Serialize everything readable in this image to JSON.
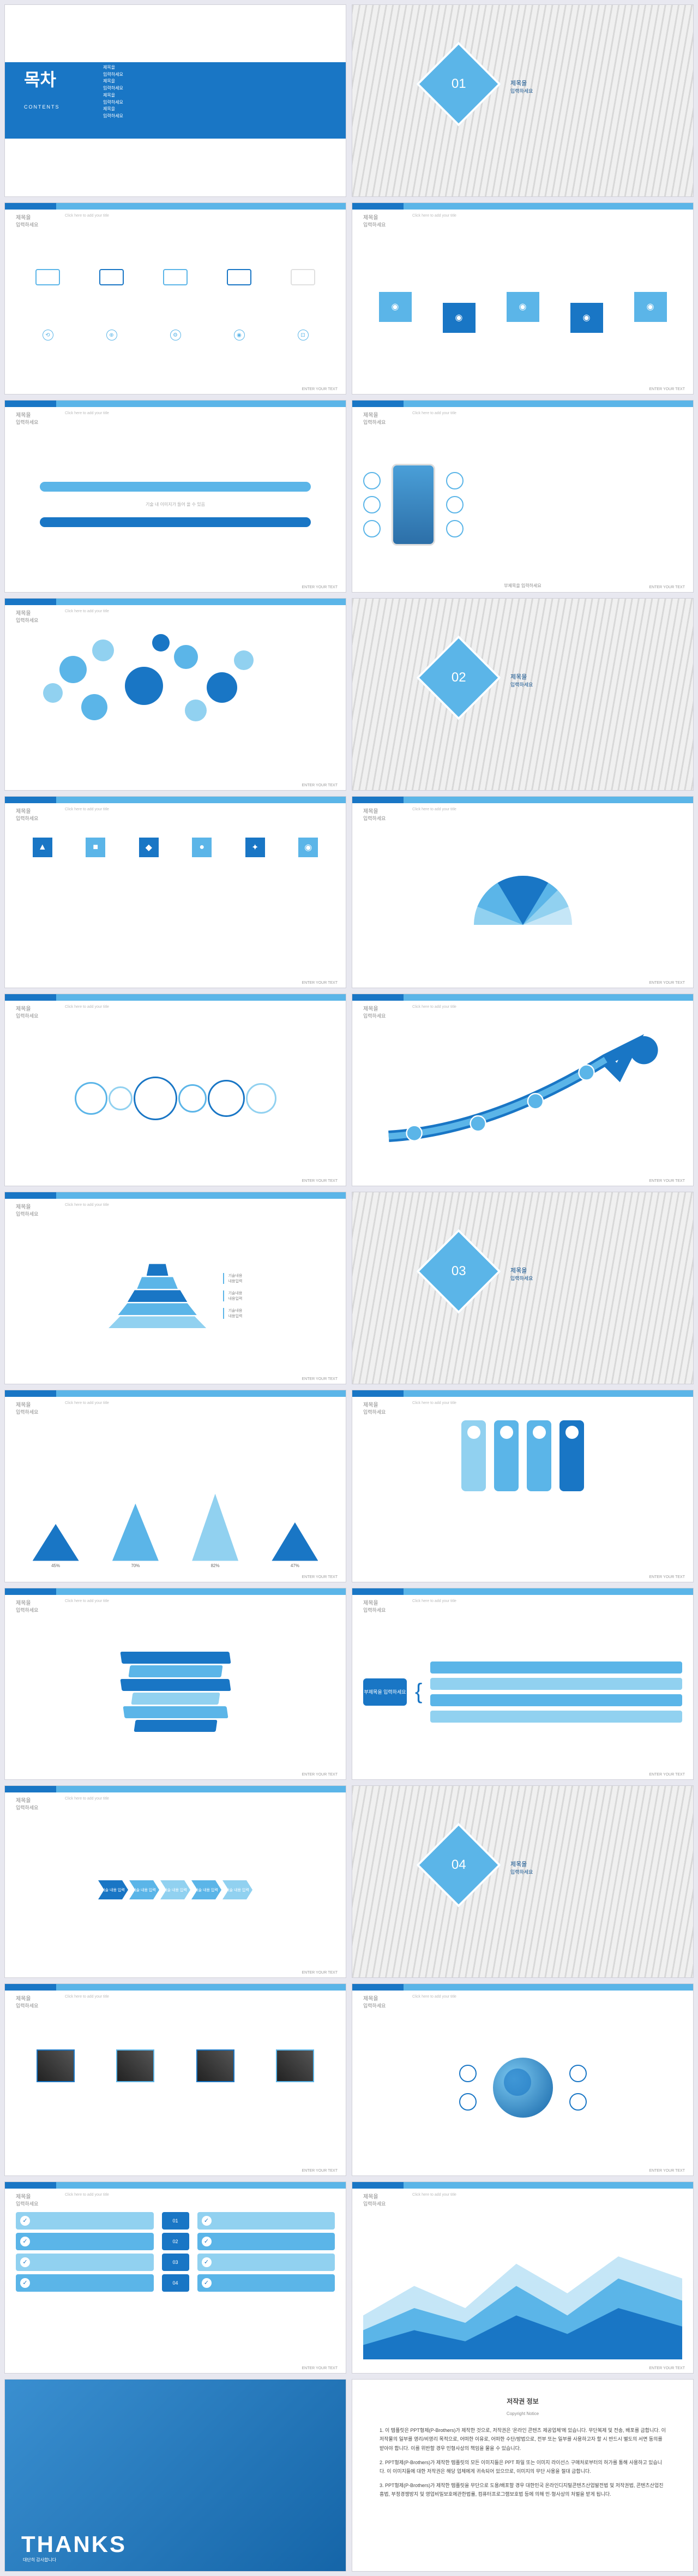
{
  "colors": {
    "primary": "#1976c5",
    "light": "#5bb5e8",
    "lighter": "#91d1f0",
    "pale": "#c5e6f7",
    "dark": "#0d4f8c",
    "grey": "#e0e0e0"
  },
  "contents": {
    "title": "목차",
    "subtitle": "CONTENTS",
    "items": [
      "제목을",
      "입력하세요",
      "제목을",
      "입력하세요",
      "제목을",
      "입력하세요",
      "제목을",
      "입력하세요"
    ]
  },
  "sections": [
    {
      "num": "01",
      "title": "제목을",
      "sub": "입력하세요"
    },
    {
      "num": "02",
      "title": "제목을",
      "sub": "입력하세요"
    },
    {
      "num": "03",
      "title": "제목을",
      "sub": "입력하세요"
    },
    {
      "num": "04",
      "title": "제목을",
      "sub": "입력하세요"
    }
  ],
  "slide_header": {
    "title": "제목을",
    "subtitle": "입력하세요",
    "caption": "Click here to add your title"
  },
  "footer": "ENTER YOUR TEXT",
  "mountains": {
    "values": [
      45,
      70,
      82,
      47
    ],
    "labels": [
      "45%",
      "70%",
      "82%",
      "47%"
    ]
  },
  "bracket": {
    "label": "부제목을 입력하세요"
  },
  "chevron_labels": [
    "기술 내용 입력",
    "기술 내용 입력",
    "기술 내용 입력",
    "기술 내용 입력",
    "기술 내용 입력"
  ],
  "thanks": {
    "title": "THANKS",
    "sub": "대단히 감사합니다"
  },
  "copyright": {
    "title": "저작권 정보",
    "sub": "Copyright Notice",
    "paras": [
      "1. 이 템플릿은 PPT형제(P-Brothers)가 제작한 것으로, 저작권은 '온라인 콘텐츠 제공업체'에 있습니다. 무단복제 및 전송, 배포를 금합니다. 이 저작물의 일부를 영리/비영리 목적으로, 어떠한 이유로, 어떠한 수단/방법으로, 전부 또는 일부를 사용하고자 할 시 반드시 별도의 서면 동의를 받아야 합니다. 이를 위반할 경우 민형사상의 책임을 물을 수 있습니다.",
      "2. PPT형제(P-Brothers)가 제작한 템플릿의 모든 이미지들은 PPT 파일 또는 이미지 라이선스 구매처로부터의 허가를 통해 사용하고 있습니다. 이 이미지들에 대한 저작권은 해당 업체에게 귀속되어 있으므로, 이미지의 무단 사용을 절대 금합니다.",
      "3. PPT형제(P-Brothers)가 제작한 템플릿을 무단으로 도용/배포할 경우 대한민국 온라인디지털콘텐츠산업발전법 및 저작권법, 콘텐츠산업진흥법, 부정경쟁방지 및 영업비밀보호에관한법률, 컴퓨터프로그램보호법 등에 의해 민·형사상의 처벌을 받게 됩니다."
    ]
  }
}
